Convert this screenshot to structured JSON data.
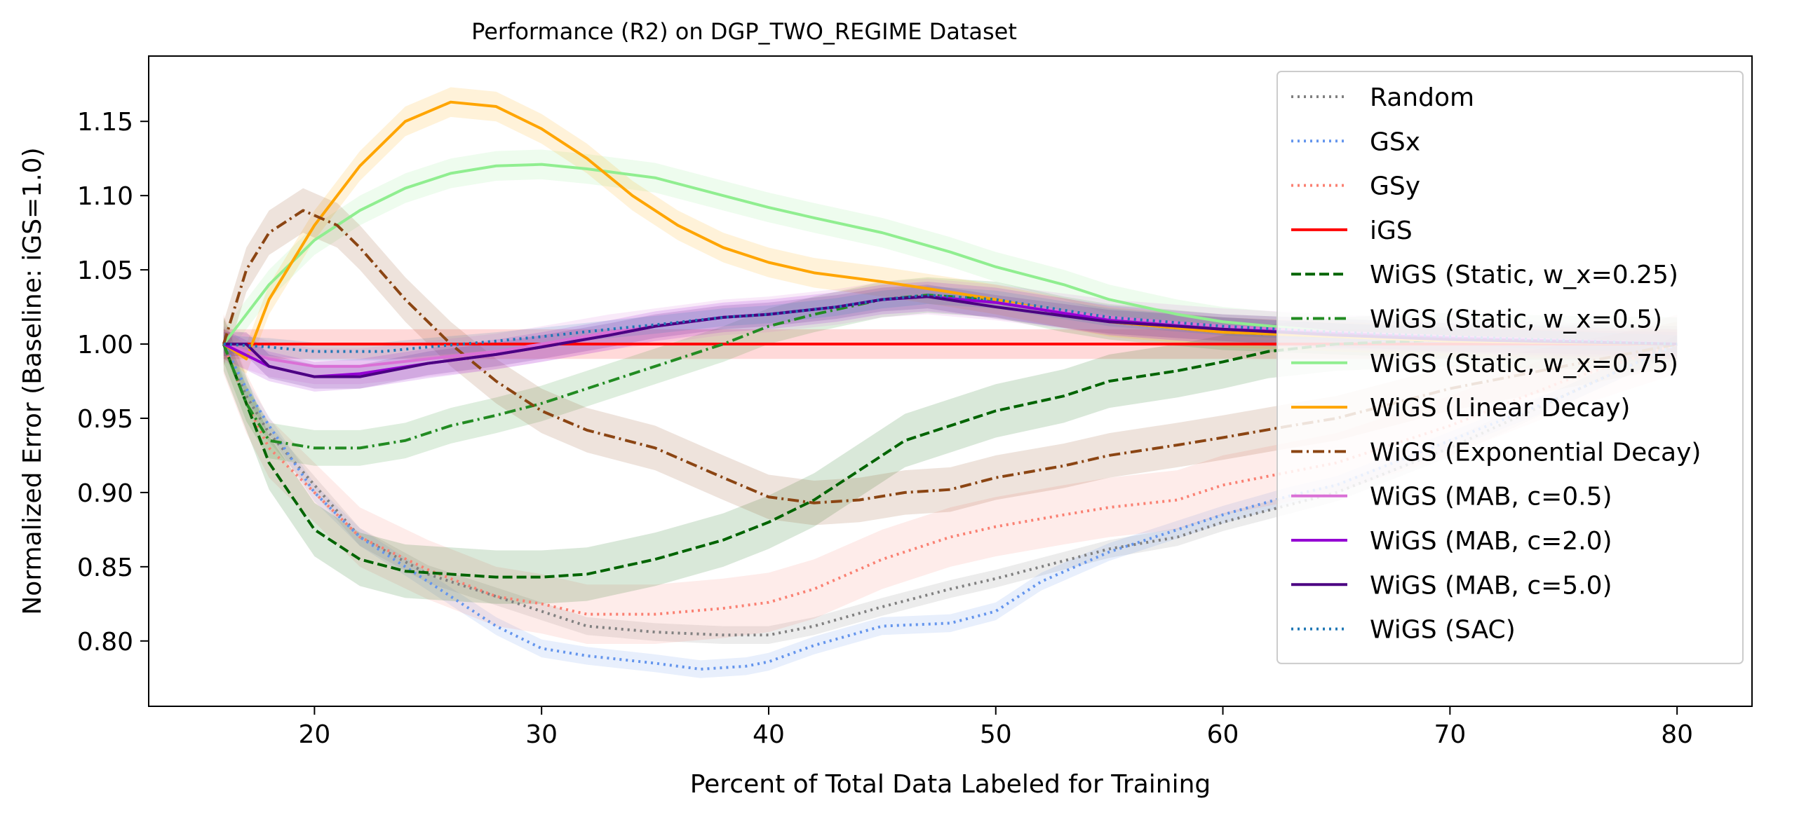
{
  "chart_data": {
    "type": "line",
    "title": "Performance (R2) on DGP_TWO_REGIME Dataset",
    "xlabel": "Percent of Total Data Labeled for Training",
    "ylabel": "Normalized Error (Baseline: iGS=1.0)",
    "xlim": [
      12.7,
      83.3
    ],
    "ylim": [
      0.756,
      1.194
    ],
    "xticks": [
      20,
      30,
      40,
      50,
      60,
      70,
      80
    ],
    "yticks": [
      0.8,
      0.85,
      0.9,
      0.95,
      1.0,
      1.05,
      1.1,
      1.15
    ],
    "grid": false,
    "legend_position": "top-right",
    "series": [
      {
        "name": "Random",
        "color": "#808080",
        "dash": "dotted",
        "band": 0.006,
        "points": [
          [
            16,
            1.0
          ],
          [
            17,
            0.965
          ],
          [
            18,
            0.94
          ],
          [
            20,
            0.905
          ],
          [
            22,
            0.87
          ],
          [
            25,
            0.845
          ],
          [
            28,
            0.83
          ],
          [
            30,
            0.82
          ],
          [
            32,
            0.81
          ],
          [
            35,
            0.806
          ],
          [
            38,
            0.804
          ],
          [
            40,
            0.804
          ],
          [
            42,
            0.81
          ],
          [
            45,
            0.823
          ],
          [
            48,
            0.835
          ],
          [
            50,
            0.842
          ],
          [
            52,
            0.85
          ],
          [
            55,
            0.862
          ],
          [
            58,
            0.87
          ],
          [
            60,
            0.88
          ],
          [
            65,
            0.9
          ],
          [
            70,
            0.93
          ],
          [
            75,
            0.965
          ],
          [
            80,
            1.0
          ]
        ]
      },
      {
        "name": "GSx",
        "color": "#6495ED",
        "dash": "dotted",
        "band": 0.006,
        "points": [
          [
            16,
            1.0
          ],
          [
            17,
            0.97
          ],
          [
            18,
            0.945
          ],
          [
            20,
            0.9
          ],
          [
            22,
            0.87
          ],
          [
            25,
            0.84
          ],
          [
            28,
            0.81
          ],
          [
            30,
            0.795
          ],
          [
            32,
            0.79
          ],
          [
            35,
            0.785
          ],
          [
            37,
            0.781
          ],
          [
            39,
            0.783
          ],
          [
            40,
            0.786
          ],
          [
            42,
            0.797
          ],
          [
            45,
            0.81
          ],
          [
            48,
            0.812
          ],
          [
            50,
            0.82
          ],
          [
            52,
            0.84
          ],
          [
            55,
            0.86
          ],
          [
            58,
            0.875
          ],
          [
            60,
            0.885
          ],
          [
            63,
            0.898
          ],
          [
            65,
            0.905
          ],
          [
            70,
            0.935
          ],
          [
            75,
            0.965
          ],
          [
            80,
            1.0
          ]
        ]
      },
      {
        "name": "GSy",
        "color": "#FA8072",
        "dash": "dotted",
        "band": 0.02,
        "points": [
          [
            16,
            1.0
          ],
          [
            17,
            0.96
          ],
          [
            18,
            0.93
          ],
          [
            20,
            0.9
          ],
          [
            22,
            0.87
          ],
          [
            25,
            0.848
          ],
          [
            28,
            0.83
          ],
          [
            30,
            0.825
          ],
          [
            32,
            0.818
          ],
          [
            35,
            0.818
          ],
          [
            38,
            0.822
          ],
          [
            40,
            0.826
          ],
          [
            42,
            0.835
          ],
          [
            45,
            0.855
          ],
          [
            48,
            0.87
          ],
          [
            50,
            0.877
          ],
          [
            53,
            0.885
          ],
          [
            55,
            0.89
          ],
          [
            58,
            0.895
          ],
          [
            60,
            0.905
          ],
          [
            65,
            0.92
          ],
          [
            70,
            0.945
          ],
          [
            75,
            0.975
          ],
          [
            80,
            1.0
          ]
        ]
      },
      {
        "name": "iGS",
        "color": "#FF0000",
        "dash": "solid",
        "band": 0.01,
        "points": [
          [
            16,
            1.0
          ],
          [
            80,
            1.0
          ]
        ]
      },
      {
        "name": "WiGS (Static, w_x=0.25)",
        "color": "#006400",
        "dash": "dashed",
        "band": 0.018,
        "points": [
          [
            16,
            1.0
          ],
          [
            17,
            0.96
          ],
          [
            18,
            0.92
          ],
          [
            20,
            0.875
          ],
          [
            22,
            0.855
          ],
          [
            24,
            0.847
          ],
          [
            26,
            0.845
          ],
          [
            28,
            0.843
          ],
          [
            30,
            0.843
          ],
          [
            32,
            0.845
          ],
          [
            35,
            0.855
          ],
          [
            38,
            0.868
          ],
          [
            40,
            0.88
          ],
          [
            42,
            0.895
          ],
          [
            44,
            0.915
          ],
          [
            46,
            0.935
          ],
          [
            48,
            0.945
          ],
          [
            50,
            0.955
          ],
          [
            53,
            0.965
          ],
          [
            55,
            0.975
          ],
          [
            58,
            0.982
          ],
          [
            60,
            0.988
          ],
          [
            62,
            0.995
          ],
          [
            65,
            1.0
          ],
          [
            70,
            1.003
          ],
          [
            75,
            1.001
          ],
          [
            80,
            1.0
          ]
        ]
      },
      {
        "name": "WiGS (Static, w_x=0.5)",
        "color": "#228B22",
        "dash": "dashdot",
        "band": 0.012,
        "points": [
          [
            16,
            1.0
          ],
          [
            17,
            0.96
          ],
          [
            18,
            0.935
          ],
          [
            20,
            0.93
          ],
          [
            22,
            0.93
          ],
          [
            24,
            0.935
          ],
          [
            26,
            0.945
          ],
          [
            28,
            0.952
          ],
          [
            30,
            0.96
          ],
          [
            32,
            0.97
          ],
          [
            35,
            0.985
          ],
          [
            38,
            1.0
          ],
          [
            40,
            1.012
          ],
          [
            42,
            1.02
          ],
          [
            45,
            1.03
          ],
          [
            47,
            1.033
          ],
          [
            50,
            1.03
          ],
          [
            53,
            1.02
          ],
          [
            55,
            1.015
          ],
          [
            60,
            1.008
          ],
          [
            65,
            1.005
          ],
          [
            70,
            1.002
          ],
          [
            80,
            1.0
          ]
        ]
      },
      {
        "name": "WiGS (Static, w_x=0.75)",
        "color": "#90EE90",
        "dash": "solid",
        "band": 0.01,
        "points": [
          [
            16,
            1.0
          ],
          [
            18,
            1.04
          ],
          [
            20,
            1.07
          ],
          [
            22,
            1.09
          ],
          [
            24,
            1.105
          ],
          [
            26,
            1.115
          ],
          [
            28,
            1.12
          ],
          [
            30,
            1.121
          ],
          [
            32,
            1.118
          ],
          [
            35,
            1.112
          ],
          [
            38,
            1.1
          ],
          [
            40,
            1.092
          ],
          [
            42,
            1.085
          ],
          [
            45,
            1.075
          ],
          [
            48,
            1.062
          ],
          [
            50,
            1.052
          ],
          [
            53,
            1.04
          ],
          [
            55,
            1.03
          ],
          [
            58,
            1.02
          ],
          [
            60,
            1.015
          ],
          [
            65,
            1.008
          ],
          [
            70,
            1.003
          ],
          [
            80,
            1.0
          ]
        ]
      },
      {
        "name": "WiGS (Linear Decay)",
        "color": "#FFA500",
        "dash": "solid",
        "band": 0.01,
        "points": [
          [
            16,
            1.0
          ],
          [
            16.5,
            0.995
          ],
          [
            17,
            0.99
          ],
          [
            18,
            1.03
          ],
          [
            20,
            1.08
          ],
          [
            22,
            1.12
          ],
          [
            24,
            1.15
          ],
          [
            26,
            1.163
          ],
          [
            28,
            1.16
          ],
          [
            30,
            1.145
          ],
          [
            32,
            1.125
          ],
          [
            34,
            1.1
          ],
          [
            36,
            1.08
          ],
          [
            38,
            1.065
          ],
          [
            40,
            1.055
          ],
          [
            42,
            1.048
          ],
          [
            45,
            1.042
          ],
          [
            48,
            1.035
          ],
          [
            50,
            1.03
          ],
          [
            55,
            1.015
          ],
          [
            60,
            1.008
          ],
          [
            65,
            1.005
          ],
          [
            70,
            1.002
          ],
          [
            80,
            1.0
          ]
        ]
      },
      {
        "name": "WiGS (Exponential Decay)",
        "color": "#8B4513",
        "dash": "dashdot",
        "band": 0.015,
        "points": [
          [
            16,
            1.0
          ],
          [
            17,
            1.05
          ],
          [
            18,
            1.075
          ],
          [
            19.5,
            1.09
          ],
          [
            21,
            1.08
          ],
          [
            22,
            1.065
          ],
          [
            24,
            1.03
          ],
          [
            26,
            1.0
          ],
          [
            28,
            0.975
          ],
          [
            30,
            0.955
          ],
          [
            32,
            0.942
          ],
          [
            35,
            0.93
          ],
          [
            38,
            0.91
          ],
          [
            40,
            0.897
          ],
          [
            42,
            0.893
          ],
          [
            44,
            0.895
          ],
          [
            46,
            0.9
          ],
          [
            48,
            0.902
          ],
          [
            50,
            0.91
          ],
          [
            53,
            0.918
          ],
          [
            55,
            0.925
          ],
          [
            58,
            0.932
          ],
          [
            60,
            0.937
          ],
          [
            63,
            0.945
          ],
          [
            65,
            0.95
          ],
          [
            70,
            0.97
          ],
          [
            75,
            0.985
          ],
          [
            80,
            1.0
          ]
        ]
      },
      {
        "name": "WiGS (MAB, c=0.5)",
        "color": "#DA70D6",
        "dash": "solid",
        "band": 0.012,
        "points": [
          [
            16,
            1.0
          ],
          [
            18,
            0.99
          ],
          [
            20,
            0.985
          ],
          [
            22,
            0.985
          ],
          [
            25,
            0.99
          ],
          [
            28,
            0.995
          ],
          [
            30,
            1.0
          ],
          [
            33,
            1.008
          ],
          [
            35,
            1.012
          ],
          [
            38,
            1.018
          ],
          [
            40,
            1.02
          ],
          [
            43,
            1.025
          ],
          [
            45,
            1.03
          ],
          [
            47,
            1.032
          ],
          [
            50,
            1.028
          ],
          [
            55,
            1.018
          ],
          [
            60,
            1.012
          ],
          [
            65,
            1.008
          ],
          [
            70,
            1.005
          ],
          [
            80,
            1.0
          ]
        ]
      },
      {
        "name": "WiGS (MAB, c=2.0)",
        "color": "#9400D3",
        "dash": "solid",
        "band": 0.01,
        "points": [
          [
            16,
            1.0
          ],
          [
            18,
            0.985
          ],
          [
            20,
            0.978
          ],
          [
            22,
            0.98
          ],
          [
            25,
            0.987
          ],
          [
            28,
            0.993
          ],
          [
            30,
            0.998
          ],
          [
            33,
            1.006
          ],
          [
            35,
            1.012
          ],
          [
            38,
            1.018
          ],
          [
            40,
            1.02
          ],
          [
            43,
            1.025
          ],
          [
            45,
            1.03
          ],
          [
            47,
            1.032
          ],
          [
            50,
            1.028
          ],
          [
            55,
            1.016
          ],
          [
            60,
            1.01
          ],
          [
            65,
            1.007
          ],
          [
            70,
            1.004
          ],
          [
            80,
            1.0
          ]
        ]
      },
      {
        "name": "WiGS (MAB, c=5.0)",
        "color": "#4B0082",
        "dash": "solid",
        "band": 0.008,
        "points": [
          [
            16,
            1.0
          ],
          [
            17,
            1.0
          ],
          [
            18,
            0.985
          ],
          [
            20,
            0.978
          ],
          [
            22,
            0.978
          ],
          [
            25,
            0.987
          ],
          [
            28,
            0.993
          ],
          [
            30,
            0.998
          ],
          [
            33,
            1.006
          ],
          [
            35,
            1.012
          ],
          [
            38,
            1.018
          ],
          [
            40,
            1.02
          ],
          [
            43,
            1.025
          ],
          [
            45,
            1.03
          ],
          [
            47,
            1.032
          ],
          [
            50,
            1.025
          ],
          [
            55,
            1.015
          ],
          [
            60,
            1.01
          ],
          [
            65,
            1.006
          ],
          [
            70,
            1.003
          ],
          [
            80,
            1.0
          ]
        ]
      },
      {
        "name": "WiGS (SAC)",
        "color": "#1F77B4",
        "dash": "dotted",
        "band": 0.006,
        "points": [
          [
            16,
            1.0
          ],
          [
            18,
            0.998
          ],
          [
            20,
            0.995
          ],
          [
            23,
            0.995
          ],
          [
            25,
            0.998
          ],
          [
            28,
            1.002
          ],
          [
            30,
            1.005
          ],
          [
            33,
            1.01
          ],
          [
            35,
            1.013
          ],
          [
            38,
            1.018
          ],
          [
            40,
            1.02
          ],
          [
            43,
            1.025
          ],
          [
            45,
            1.03
          ],
          [
            47,
            1.033
          ],
          [
            50,
            1.03
          ],
          [
            55,
            1.018
          ],
          [
            60,
            1.012
          ],
          [
            65,
            1.008
          ],
          [
            70,
            1.005
          ],
          [
            80,
            1.0
          ]
        ]
      }
    ]
  }
}
